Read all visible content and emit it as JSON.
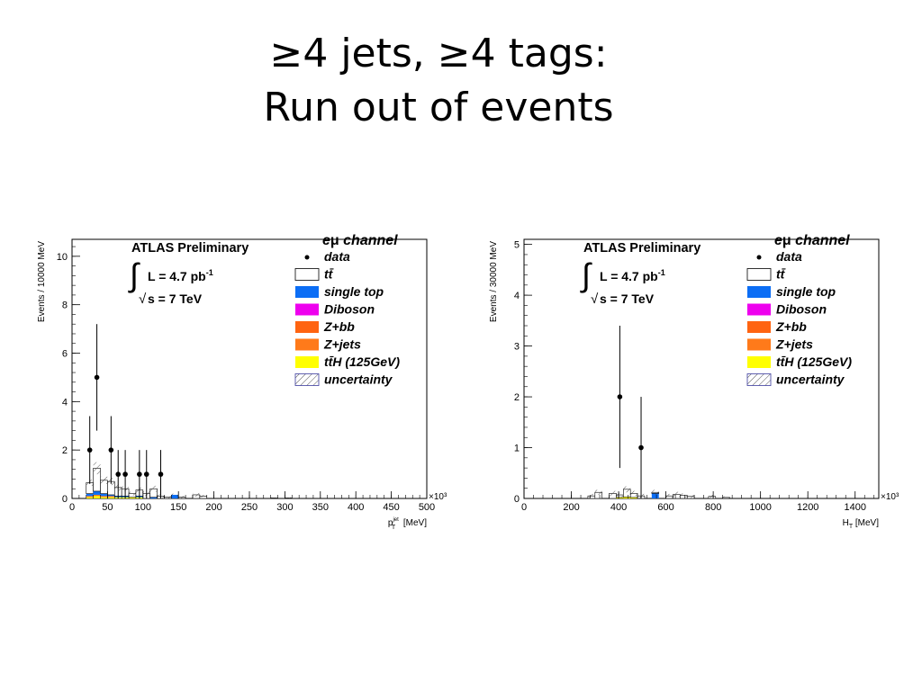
{
  "slide": {
    "title_line1": "≥4 jets, ≥4  tags:",
    "title_line2": "Run out of events"
  },
  "colors": {
    "ttbar": "#ffffff",
    "single_top": "#0c6ef5",
    "diboson": "#ee00ee",
    "zbb": "#ff6411",
    "zjets": "#ff7a1a",
    "tth": "#ffff00",
    "uncertainty_hatch": "#3b3b9e"
  },
  "chart_data": [
    {
      "type": "bar",
      "title": "",
      "experiment": "ATLAS Preliminary",
      "lumi": "L = 4.7 pb",
      "lumi_exp": "-1",
      "energy": "s = 7 TeV",
      "channel_prefix": "e",
      "channel_mu": "μ",
      "channel_suffix": " channel",
      "xlabel": "p",
      "xlabel_sub": "T",
      "xlabel_sup": "jet",
      "xlabel_unit": " [MeV]",
      "ylabel": "Events / 10000 MeV",
      "x_multiplier": "×10³",
      "xlim": [
        0,
        500
      ],
      "ylim": [
        0,
        10.7
      ],
      "xticks": [
        0,
        50,
        100,
        150,
        200,
        250,
        300,
        350,
        400,
        450,
        500
      ],
      "yticks": [
        0,
        2,
        4,
        6,
        8,
        10
      ],
      "legend": [
        "data",
        "tt̄",
        "single top",
        "Diboson",
        "Z+bb",
        "Z+jets",
        "tt̄H (125GeV)",
        "uncertainty"
      ],
      "data_points": [
        {
          "x": 25,
          "y": 2,
          "err": 1.4
        },
        {
          "x": 35,
          "y": 5,
          "err": 2.2
        },
        {
          "x": 55,
          "y": 2,
          "err": 1.4
        },
        {
          "x": 65,
          "y": 1,
          "err": 1.0
        },
        {
          "x": 75,
          "y": 1,
          "err": 1.0
        },
        {
          "x": 95,
          "y": 1,
          "err": 1.0
        },
        {
          "x": 105,
          "y": 1,
          "err": 1.0
        },
        {
          "x": 125,
          "y": 1,
          "err": 1.0
        }
      ],
      "mc_stack": [
        {
          "x": 25,
          "ttbar": 0.45,
          "single_top": 0.1,
          "zjets": 0.05,
          "tth": 0.05,
          "unc": 0.25
        },
        {
          "x": 35,
          "ttbar": 0.95,
          "single_top": 0.15,
          "zjets": 0.05,
          "tth": 0.1,
          "unc": 0.5
        },
        {
          "x": 45,
          "ttbar": 0.55,
          "single_top": 0.1,
          "zjets": 0.05,
          "tth": 0.05,
          "unc": 0.3
        },
        {
          "x": 55,
          "ttbar": 0.55,
          "single_top": 0.05,
          "zjets": 0.05,
          "tth": 0.05,
          "unc": 0.3
        },
        {
          "x": 65,
          "ttbar": 0.35,
          "single_top": 0.05,
          "zjets": 0.0,
          "tth": 0.05,
          "unc": 0.25
        },
        {
          "x": 75,
          "ttbar": 0.3,
          "single_top": 0.05,
          "zjets": 0.0,
          "tth": 0.05,
          "unc": 0.2
        },
        {
          "x": 85,
          "ttbar": 0.15,
          "single_top": 0.0,
          "zjets": 0.0,
          "tth": 0.05,
          "unc": 0.15
        },
        {
          "x": 95,
          "ttbar": 0.25,
          "single_top": 0.05,
          "zjets": 0.0,
          "tth": 0.05,
          "unc": 0.2
        },
        {
          "x": 105,
          "ttbar": 0.2,
          "single_top": 0.0,
          "zjets": 0.0,
          "tth": 0.0,
          "unc": 0.2
        },
        {
          "x": 115,
          "ttbar": 0.35,
          "single_top": 0.05,
          "zjets": 0.0,
          "tth": 0.0,
          "unc": 0.25
        },
        {
          "x": 125,
          "ttbar": 0.1,
          "single_top": 0.0,
          "zjets": 0.0,
          "tth": 0.0,
          "unc": 0.15
        },
        {
          "x": 135,
          "ttbar": 0.05,
          "single_top": 0.0,
          "zjets": 0.0,
          "tth": 0.0,
          "unc": 0.1
        },
        {
          "x": 145,
          "ttbar": 0.0,
          "single_top": 0.15,
          "zjets": 0.0,
          "tth": 0.0,
          "unc": 0.1
        },
        {
          "x": 155,
          "ttbar": 0.05,
          "single_top": 0.0,
          "zjets": 0.0,
          "tth": 0.0,
          "unc": 0.1
        },
        {
          "x": 175,
          "ttbar": 0.15,
          "single_top": 0.0,
          "zjets": 0.0,
          "tth": 0.0,
          "unc": 0.15
        },
        {
          "x": 185,
          "ttbar": 0.1,
          "single_top": 0.0,
          "zjets": 0.0,
          "tth": 0.0,
          "unc": 0.1
        },
        {
          "x": 285,
          "ttbar": 0.02,
          "single_top": 0.0,
          "zjets": 0.0,
          "tth": 0.0,
          "unc": 0.05
        },
        {
          "x": 305,
          "ttbar": 0.02,
          "single_top": 0.0,
          "zjets": 0.0,
          "tth": 0.0,
          "unc": 0.05
        }
      ]
    },
    {
      "type": "bar",
      "title": "",
      "experiment": "ATLAS Preliminary",
      "lumi": "L = 4.7 pb",
      "lumi_exp": "-1",
      "energy": "s = 7 TeV",
      "channel_prefix": "e",
      "channel_mu": "μ",
      "channel_suffix": " channel",
      "xlabel": "H",
      "xlabel_sub": "T",
      "xlabel_sup": "",
      "xlabel_unit": " [MeV]",
      "ylabel": "Events / 30000 MeV",
      "x_multiplier": "×10³",
      "xlim": [
        0,
        1500
      ],
      "ylim": [
        0,
        5.1
      ],
      "xticks": [
        0,
        200,
        400,
        600,
        800,
        1000,
        1200,
        1400
      ],
      "yticks": [
        0,
        1,
        2,
        3,
        4,
        5
      ],
      "legend": [
        "data",
        "tt̄",
        "single top",
        "Diboson",
        "Z+bb",
        "Z+jets",
        "tt̄H (125GeV)",
        "uncertainty"
      ],
      "data_points": [
        {
          "x": 405,
          "y": 2,
          "err": 1.4
        },
        {
          "x": 495,
          "y": 1,
          "err": 1.0
        }
      ],
      "mc_stack": [
        {
          "x": 285,
          "ttbar": 0.05,
          "single_top": 0.0,
          "zjets": 0.0,
          "tth": 0.0,
          "unc": 0.08
        },
        {
          "x": 315,
          "ttbar": 0.12,
          "single_top": 0.0,
          "zjets": 0.0,
          "tth": 0.0,
          "unc": 0.1
        },
        {
          "x": 375,
          "ttbar": 0.1,
          "single_top": 0.0,
          "zjets": 0.0,
          "tth": 0.0,
          "unc": 0.1
        },
        {
          "x": 405,
          "ttbar": 0.05,
          "single_top": 0.0,
          "zjets": 0.0,
          "tth": 0.02,
          "unc": 0.08
        },
        {
          "x": 435,
          "ttbar": 0.15,
          "single_top": 0.0,
          "zjets": 0.0,
          "tth": 0.03,
          "unc": 0.12
        },
        {
          "x": 465,
          "ttbar": 0.08,
          "single_top": 0.0,
          "zjets": 0.0,
          "tth": 0.02,
          "unc": 0.1
        },
        {
          "x": 495,
          "ttbar": 0.05,
          "single_top": 0.0,
          "zjets": 0.0,
          "tth": 0.0,
          "unc": 0.08
        },
        {
          "x": 555,
          "ttbar": 0.02,
          "single_top": 0.1,
          "zjets": 0.0,
          "tth": 0.0,
          "unc": 0.1
        },
        {
          "x": 615,
          "ttbar": 0.05,
          "single_top": 0.0,
          "zjets": 0.0,
          "tth": 0.0,
          "unc": 0.08
        },
        {
          "x": 645,
          "ttbar": 0.08,
          "single_top": 0.0,
          "zjets": 0.0,
          "tth": 0.0,
          "unc": 0.1
        },
        {
          "x": 675,
          "ttbar": 0.06,
          "single_top": 0.0,
          "zjets": 0.0,
          "tth": 0.0,
          "unc": 0.08
        },
        {
          "x": 705,
          "ttbar": 0.04,
          "single_top": 0.0,
          "zjets": 0.0,
          "tth": 0.0,
          "unc": 0.06
        },
        {
          "x": 795,
          "ttbar": 0.04,
          "single_top": 0.0,
          "zjets": 0.0,
          "tth": 0.0,
          "unc": 0.06
        },
        {
          "x": 855,
          "ttbar": 0.02,
          "single_top": 0.0,
          "zjets": 0.0,
          "tth": 0.0,
          "unc": 0.04
        }
      ]
    }
  ]
}
